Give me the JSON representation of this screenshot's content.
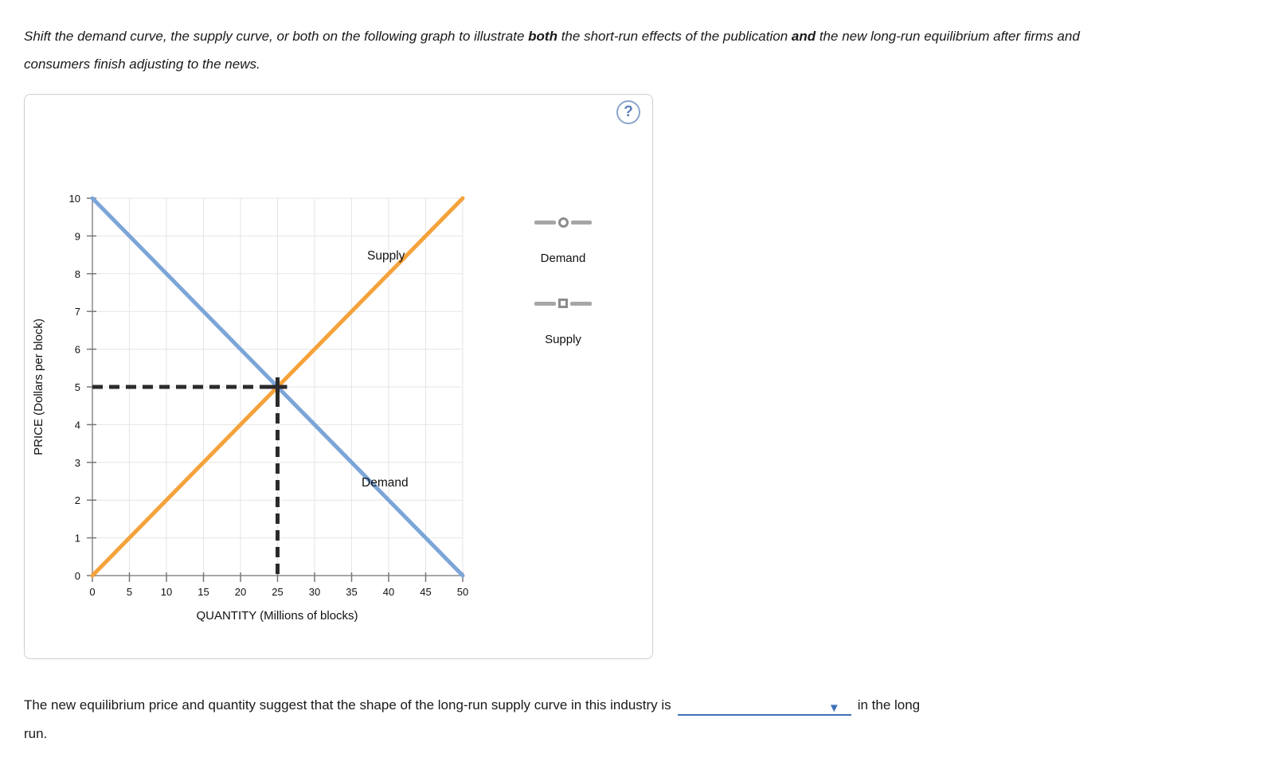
{
  "instruction": {
    "part1": "Shift the demand curve, the supply curve, or both on the following graph to illustrate ",
    "bold1": "both",
    "part2": " the short-run effects of the publication ",
    "bold2": "and",
    "part3": " the new long-run equilibrium after firms and consumers finish adjusting to the news."
  },
  "panel": {
    "help_icon": "?"
  },
  "chart": {
    "y_axis_label": "PRICE (Dollars per block)",
    "x_axis_label": "QUANTITY (Millions of blocks)",
    "supply_label": "Supply",
    "demand_label": "Demand",
    "y_ticks": [
      "10",
      "9",
      "8",
      "7",
      "6",
      "5",
      "4",
      "3",
      "2",
      "1",
      "0"
    ],
    "x_ticks": [
      "0",
      "5",
      "10",
      "15",
      "20",
      "25",
      "30",
      "35",
      "40",
      "45",
      "50"
    ]
  },
  "chart_data": {
    "type": "line",
    "title": "",
    "xlabel": "QUANTITY (Millions of blocks)",
    "ylabel": "PRICE (Dollars per block)",
    "xlim": [
      0,
      50
    ],
    "ylim": [
      0,
      10
    ],
    "grid": true,
    "series": [
      {
        "name": "Demand",
        "color": "#7CA5D8",
        "points": [
          [
            0,
            10
          ],
          [
            50,
            0
          ]
        ]
      },
      {
        "name": "Supply",
        "color": "#F5A23B",
        "points": [
          [
            0,
            0
          ],
          [
            50,
            10
          ]
        ]
      }
    ],
    "equilibrium": {
      "quantity": 25,
      "price": 5
    },
    "equilibrium_line_color": "#2b2b2b"
  },
  "legend": {
    "demand_label": "Demand",
    "supply_label": "Supply"
  },
  "question": {
    "part1": "The new equilibrium price and quantity suggest that the shape of the long-run supply curve in this industry is",
    "dropdown_value": "",
    "dropdown_arrow": "▼",
    "part2": "in the long",
    "part3": "run."
  }
}
